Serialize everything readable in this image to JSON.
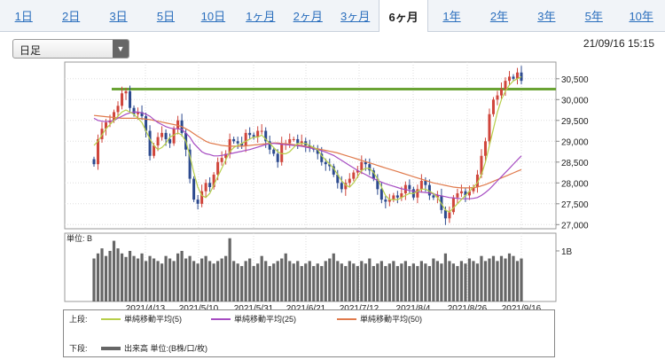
{
  "tabs": [
    "1日",
    "2日",
    "3日",
    "5日",
    "10日",
    "1ヶ月",
    "2ヶ月",
    "3ヶ月",
    "6ヶ月",
    "1年",
    "2年",
    "3年",
    "5年",
    "10年"
  ],
  "active_tab": 8,
  "select": {
    "label": "日足"
  },
  "timestamp": "21/09/16 15:15",
  "legend": {
    "upper_label": "上段:",
    "lower_label": "下段:",
    "ma5": "単純移動平均(5)",
    "ma25": "単純移動平均(25)",
    "ma50": "単純移動平均(50)",
    "volume": "出来高 単位:(B株/口/枚)"
  },
  "colors": {
    "ma5": "#b7cf4a",
    "ma25": "#a64cc2",
    "ma50": "#e07a4c",
    "resistance": "#6aa334",
    "up": "#d0453b",
    "down": "#2c4a8f",
    "volume": "#666666"
  },
  "chart_data": {
    "type": "candlestick",
    "x_tick_labels": [
      "2021/4/13",
      "2021/5/10",
      "2021/5/31",
      "2021/6/21",
      "2021/7/12",
      "2021/8/4",
      "2021/8/26",
      "2021/9/16"
    ],
    "y_tick_labels": [
      "27,000",
      "27,500",
      "28,000",
      "28,500",
      "29,000",
      "29,500",
      "30,000",
      "30,500"
    ],
    "ylim": [
      26900,
      30900
    ],
    "horizontal_line": 30250,
    "close": [
      28450,
      29050,
      29300,
      29450,
      29500,
      29700,
      29850,
      30150,
      30200,
      29800,
      29650,
      29700,
      29600,
      29250,
      28650,
      28900,
      29100,
      29200,
      29050,
      28950,
      29300,
      29500,
      29200,
      28800,
      28100,
      27600,
      27500,
      27800,
      28000,
      27900,
      28200,
      28500,
      28600,
      28700,
      29050,
      29000,
      28950,
      28900,
      29200,
      29150,
      29100,
      29250,
      29250,
      29000,
      28800,
      28700,
      28500,
      28950,
      28950,
      29050,
      29050,
      28950,
      29000,
      28900,
      28850,
      28800,
      28700,
      28500,
      28450,
      28400,
      28200,
      28000,
      27850,
      28000,
      28100,
      28250,
      28300,
      28500,
      28450,
      28300,
      28100,
      27850,
      27600,
      27550,
      27600,
      27700,
      27650,
      27750,
      27950,
      27850,
      27650,
      27850,
      28050,
      27950,
      27700,
      27650,
      27700,
      27350,
      27150,
      27300,
      27650,
      27750,
      27800,
      27700,
      27800,
      27900,
      28200,
      28650,
      29000,
      29650,
      30000,
      30100,
      30250,
      30450,
      30550,
      30500,
      30650,
      30450
    ],
    "ma5": [
      28900,
      29000,
      29150,
      29300,
      29400,
      29500,
      29600,
      29700,
      29750,
      29700,
      29650,
      29550,
      29450,
      29250,
      29050,
      28900,
      28800,
      28850,
      28950,
      29100,
      29150,
      29200,
      29150,
      29000,
      28650,
      28250,
      27900,
      27700,
      27650,
      27750,
      27950,
      28150,
      28350,
      28550,
      28750,
      28850,
      28900,
      28950,
      29000,
      29050,
      29100,
      29100,
      29150,
      29050,
      28950,
      28850,
      28750,
      28700,
      28700,
      28750,
      28850,
      28950,
      28950,
      28950,
      28900,
      28850,
      28800,
      28650,
      28550,
      28450,
      28350,
      28200,
      28050,
      27950,
      27900,
      28000,
      28150,
      28300,
      28350,
      28350,
      28250,
      28100,
      27900,
      27700,
      27600,
      27600,
      27600,
      27650,
      27700,
      27750,
      27750,
      27800,
      27850,
      27850,
      27800,
      27750,
      27650,
      27500,
      27350,
      27300,
      27400,
      27500,
      27600,
      27700,
      27800,
      27900,
      28000,
      28200,
      28500,
      28900,
      29300,
      29700,
      30000,
      30200,
      30350,
      30450,
      30500,
      30550
    ],
    "ma25": [
      29550,
      29500,
      29480,
      29470,
      29480,
      29500,
      29550,
      29600,
      29650,
      29680,
      29700,
      29700,
      29680,
      29650,
      29600,
      29520,
      29450,
      29400,
      29350,
      29320,
      29300,
      29300,
      29280,
      29200,
      29100,
      28950,
      28850,
      28750,
      28700,
      28680,
      28650,
      28650,
      28660,
      28680,
      28700,
      28720,
      28740,
      28760,
      28780,
      28800,
      28830,
      28860,
      28890,
      28920,
      28940,
      28950,
      28940,
      28930,
      28920,
      28910,
      28900,
      28890,
      28880,
      28860,
      28840,
      28820,
      28800,
      28770,
      28740,
      28700,
      28660,
      28600,
      28540,
      28480,
      28420,
      28360,
      28300,
      28250,
      28200,
      28150,
      28100,
      28060,
      28020,
      27980,
      27950,
      27920,
      27890,
      27860,
      27840,
      27820,
      27800,
      27790,
      27780,
      27770,
      27760,
      27740,
      27710,
      27690,
      27670,
      27650,
      27640,
      27630,
      27620,
      27620,
      27620,
      27630,
      27650,
      27700,
      27770,
      27850,
      27950,
      28050,
      28150,
      28250,
      28350,
      28450,
      28550,
      28650
    ],
    "ma50": [
      29620,
      29610,
      29600,
      29590,
      29580,
      29570,
      29560,
      29550,
      29550,
      29550,
      29550,
      29550,
      29540,
      29530,
      29520,
      29500,
      29480,
      29460,
      29440,
      29420,
      29400,
      29380,
      29350,
      29300,
      29250,
      29180,
      29120,
      29060,
      29000,
      28960,
      28940,
      28920,
      28900,
      28890,
      28880,
      28880,
      28880,
      28880,
      28890,
      28900,
      28910,
      28920,
      28930,
      28940,
      28950,
      28960,
      28960,
      28950,
      28940,
      28930,
      28920,
      28910,
      28900,
      28880,
      28860,
      28840,
      28820,
      28800,
      28780,
      28760,
      28740,
      28720,
      28690,
      28660,
      28630,
      28600,
      28570,
      28540,
      28510,
      28480,
      28450,
      28420,
      28390,
      28360,
      28330,
      28300,
      28270,
      28240,
      28210,
      28180,
      28150,
      28120,
      28090,
      28060,
      28030,
      28000,
      27980,
      27960,
      27940,
      27920,
      27900,
      27890,
      27880,
      27880,
      27880,
      27890,
      27900,
      27930,
      27960,
      28000,
      28040,
      28080,
      28120,
      28160,
      28200,
      28240,
      28280,
      28320
    ],
    "volume_unit": "単位: B",
    "volume_tick_label": "1B",
    "volume": [
      0.85,
      0.95,
      1.05,
      0.9,
      1.0,
      1.2,
      1.05,
      0.95,
      0.88,
      1.0,
      0.9,
      0.85,
      0.95,
      0.8,
      0.9,
      0.85,
      0.8,
      0.75,
      0.9,
      0.85,
      0.8,
      0.95,
      1.0,
      0.85,
      0.9,
      0.8,
      0.75,
      0.85,
      0.9,
      0.8,
      0.75,
      0.8,
      0.85,
      0.9,
      1.25,
      0.8,
      0.75,
      0.7,
      0.8,
      0.85,
      0.7,
      0.75,
      0.9,
      0.8,
      0.7,
      0.75,
      0.8,
      0.85,
      0.95,
      0.8,
      0.75,
      0.8,
      0.7,
      0.75,
      0.8,
      0.7,
      0.75,
      0.7,
      0.8,
      0.85,
      0.95,
      0.8,
      0.75,
      0.7,
      0.8,
      0.75,
      0.7,
      0.8,
      0.75,
      0.85,
      0.7,
      0.75,
      0.8,
      0.7,
      0.75,
      0.8,
      0.7,
      0.75,
      0.8,
      0.7,
      0.75,
      0.7,
      0.8,
      0.75,
      0.7,
      0.85,
      0.8,
      0.75,
      0.95,
      0.8,
      0.75,
      0.7,
      0.8,
      0.75,
      0.85,
      0.8,
      0.75,
      0.9,
      0.8,
      0.85,
      0.9,
      0.8,
      0.9,
      0.85,
      0.95,
      0.9,
      0.8,
      0.85
    ]
  }
}
